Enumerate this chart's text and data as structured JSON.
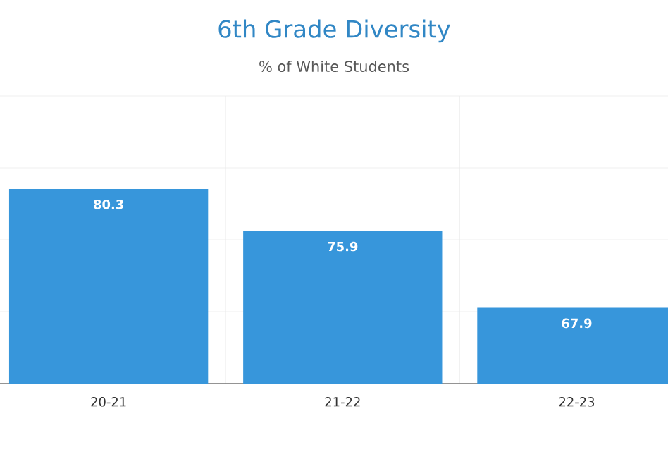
{
  "chart_data": {
    "type": "bar",
    "title": "6th Grade Diversity",
    "subtitle": "% of White Students",
    "categories": [
      "20-21",
      "21-22",
      "22-23"
    ],
    "values": [
      80.3,
      75.9,
      67.9
    ],
    "color": "#3796db",
    "ylim": [
      60,
      90
    ],
    "yticks": [
      {
        "value": 60,
        "label": null
      },
      {
        "value": 67.5,
        "label": null
      },
      {
        "value": 75,
        "label": null
      },
      {
        "value": 82.5,
        "label": null
      },
      {
        "value": 90,
        "label": null
      }
    ],
    "grid": true,
    "data_labels": true,
    "tick_labels": "x"
  }
}
